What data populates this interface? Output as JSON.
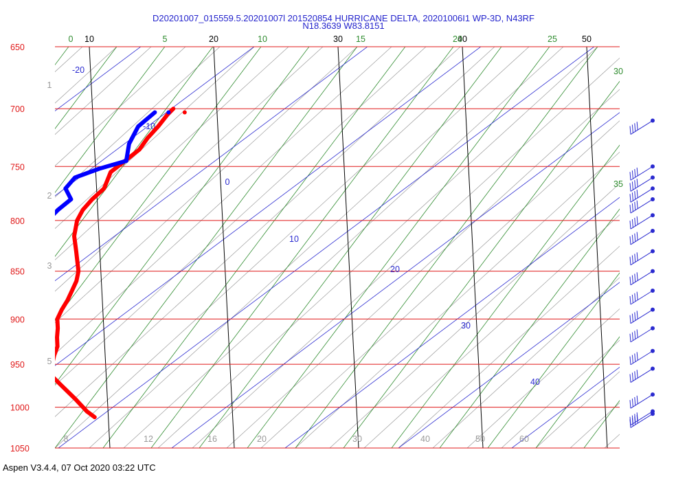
{
  "header": {
    "line1": "D20201007_015559.5.20201007l 201520854 HURRICANE DELTA, 20201006I1 WP-3D, N43RF",
    "line2": "N18.3639 W83.8151"
  },
  "footer": {
    "text": "Aspen V3.4.4, 07 Oct 2020  03:22 UTC"
  },
  "chart_data": {
    "type": "skew-t",
    "x_axis": "temperature (°C), skewed",
    "y_axis": "pressure (mb), logarithmic",
    "pressure_levels": [
      650,
      700,
      750,
      800,
      850,
      900,
      950,
      1000,
      1050
    ],
    "isotherm_labels": [
      "10",
      "20",
      "30",
      "40",
      "50"
    ],
    "isotherms": [
      10,
      20,
      30,
      40,
      50
    ],
    "mixing_ratio_labels": [
      "0",
      "5",
      "10",
      "15",
      "20",
      "25",
      "30",
      "35"
    ],
    "mixing_ratio_bottom_labels": [
      "8",
      "12",
      "16",
      "20",
      "30",
      "40",
      "50",
      "60"
    ],
    "dry_adiabat_labels": [
      "-20",
      "-10",
      "0",
      "10",
      "20",
      "30",
      "40"
    ],
    "left_scale_labels": [
      "1",
      "2",
      "3",
      "5"
    ],
    "series": [
      {
        "name": "temperature",
        "color": "#ff0000",
        "points": [
          [
            700,
            16.5
          ],
          [
            705,
            16.0
          ],
          [
            715,
            15.2
          ],
          [
            725,
            14.3
          ],
          [
            735,
            13.6
          ],
          [
            745,
            12.4
          ],
          [
            755,
            11.2
          ],
          [
            770,
            10.6
          ],
          [
            780,
            9.6
          ],
          [
            790,
            8.8
          ],
          [
            800,
            8.3
          ],
          [
            815,
            8.0
          ],
          [
            830,
            8.1
          ],
          [
            850,
            8.2
          ],
          [
            860,
            8.0
          ],
          [
            870,
            7.6
          ],
          [
            880,
            7.2
          ],
          [
            890,
            6.7
          ],
          [
            900,
            6.3
          ],
          [
            910,
            6.3
          ],
          [
            920,
            6.2
          ],
          [
            930,
            6.2
          ],
          [
            940,
            5.9
          ],
          [
            950,
            5.7
          ],
          [
            952,
            5.0
          ],
          [
            960,
            5.4
          ],
          [
            975,
            6.4
          ],
          [
            990,
            7.4
          ],
          [
            1005,
            8.3
          ],
          [
            1012,
            8.9
          ]
        ],
        "marker_end": [
          703,
          17.4
        ]
      },
      {
        "name": "dew point",
        "color": "#0000ff",
        "points": [
          [
            703,
            15.0
          ],
          [
            715,
            13.6
          ],
          [
            730,
            12.8
          ],
          [
            745,
            12.5
          ],
          [
            752,
            10.3
          ],
          [
            760,
            8.3
          ],
          [
            770,
            7.5
          ],
          [
            780,
            7.9
          ],
          [
            790,
            6.8
          ],
          [
            805,
            5.5
          ],
          [
            820,
            3.7
          ],
          [
            830,
            2.6
          ],
          [
            845,
            2.6
          ],
          [
            860,
            2.0
          ],
          [
            870,
            1.6
          ],
          [
            880,
            1.0
          ],
          [
            890,
            0.8
          ],
          [
            900,
            4.1
          ],
          [
            910,
            2.7
          ],
          [
            920,
            3.6
          ],
          [
            935,
            3.6
          ],
          [
            950,
            4.5
          ],
          [
            965,
            4.2
          ],
          [
            980,
            3.1
          ],
          [
            995,
            2.2
          ],
          [
            1005,
            1.7
          ],
          [
            1012,
            1.4
          ]
        ],
        "marker_end": [
          703,
          16.1
        ]
      }
    ],
    "wind_barb_pressures": [
      710,
      750,
      760,
      770,
      780,
      795,
      810,
      830,
      850,
      870,
      890,
      910,
      935,
      955,
      985,
      1005,
      1008
    ]
  }
}
